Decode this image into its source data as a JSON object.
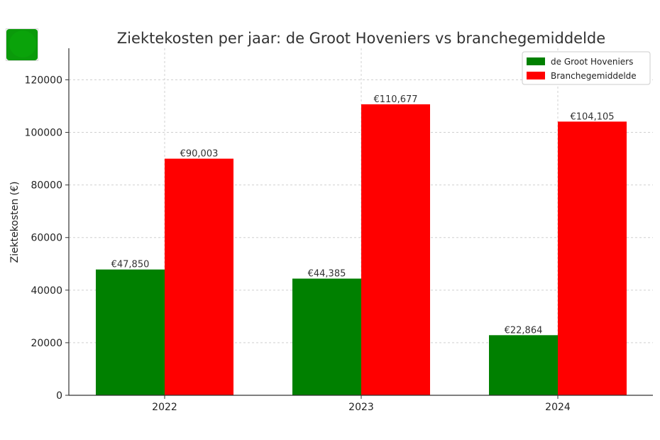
{
  "chart_data": {
    "type": "bar",
    "title": "Ziektekosten per jaar: de Groot Hoveniers vs branchegemiddelde",
    "xlabel": "",
    "ylabel": "Ziektekosten (€)",
    "categories": [
      "2022",
      "2023",
      "2024"
    ],
    "series": [
      {
        "name": "de Groot Hoveniers",
        "color": "#008000",
        "values": [
          47850,
          44385,
          22864
        ],
        "labels": [
          "€47,850",
          "€44,385",
          "€22,864"
        ]
      },
      {
        "name": "Branchegemiddelde",
        "color": "#ff0000",
        "values": [
          90003,
          110677,
          104105
        ],
        "labels": [
          "€90,003",
          "€110,677",
          "€104,105"
        ]
      }
    ],
    "ylim": [
      0,
      132000
    ],
    "yticks": [
      0,
      20000,
      40000,
      60000,
      80000,
      100000,
      120000
    ],
    "ytick_labels": [
      "0",
      "20000",
      "40000",
      "60000",
      "80000",
      "100000",
      "120000"
    ],
    "grid": true,
    "legend": "top-right"
  },
  "logo": {
    "color": "#0a9a0a",
    "name": "green-square-logo"
  }
}
